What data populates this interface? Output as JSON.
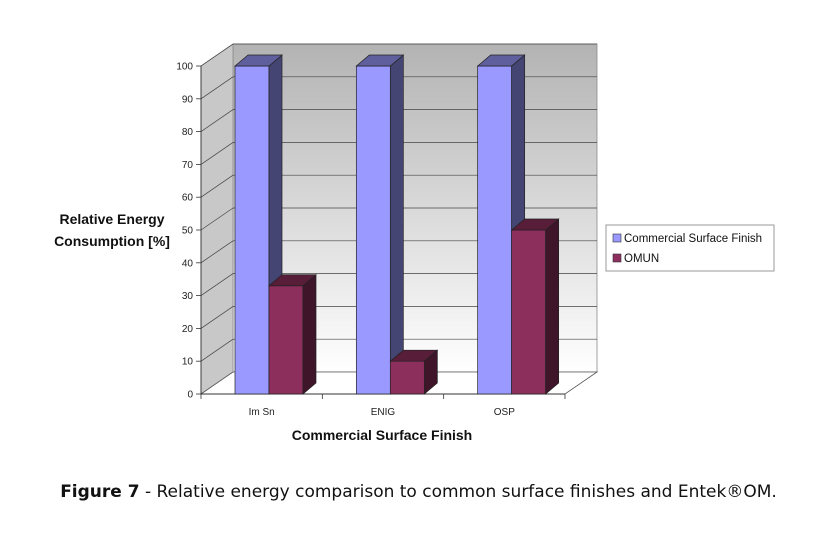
{
  "chart_data": {
    "type": "bar",
    "categories": [
      "Im Sn",
      "ENIG",
      "OSP"
    ],
    "series": [
      {
        "name": "Commercial Surface Finish",
        "values": [
          100,
          100,
          100
        ],
        "color": "#9999ff"
      },
      {
        "name": "OMUN",
        "values": [
          33,
          10,
          50
        ],
        "color": "#8c2f5c"
      }
    ],
    "xlabel": "Commercial Surface Finish",
    "ylabel": [
      "Relative Energy",
      "Consumption [%]"
    ],
    "ylim": [
      0,
      100
    ],
    "yticks": [
      0,
      10,
      20,
      30,
      40,
      50,
      60,
      70,
      80,
      90,
      100
    ],
    "grid": true,
    "legend": "right",
    "style": "3d"
  },
  "caption": {
    "label": "Figure 7",
    "text": " - Relative energy comparison to common surface finishes and Entek®OM."
  }
}
